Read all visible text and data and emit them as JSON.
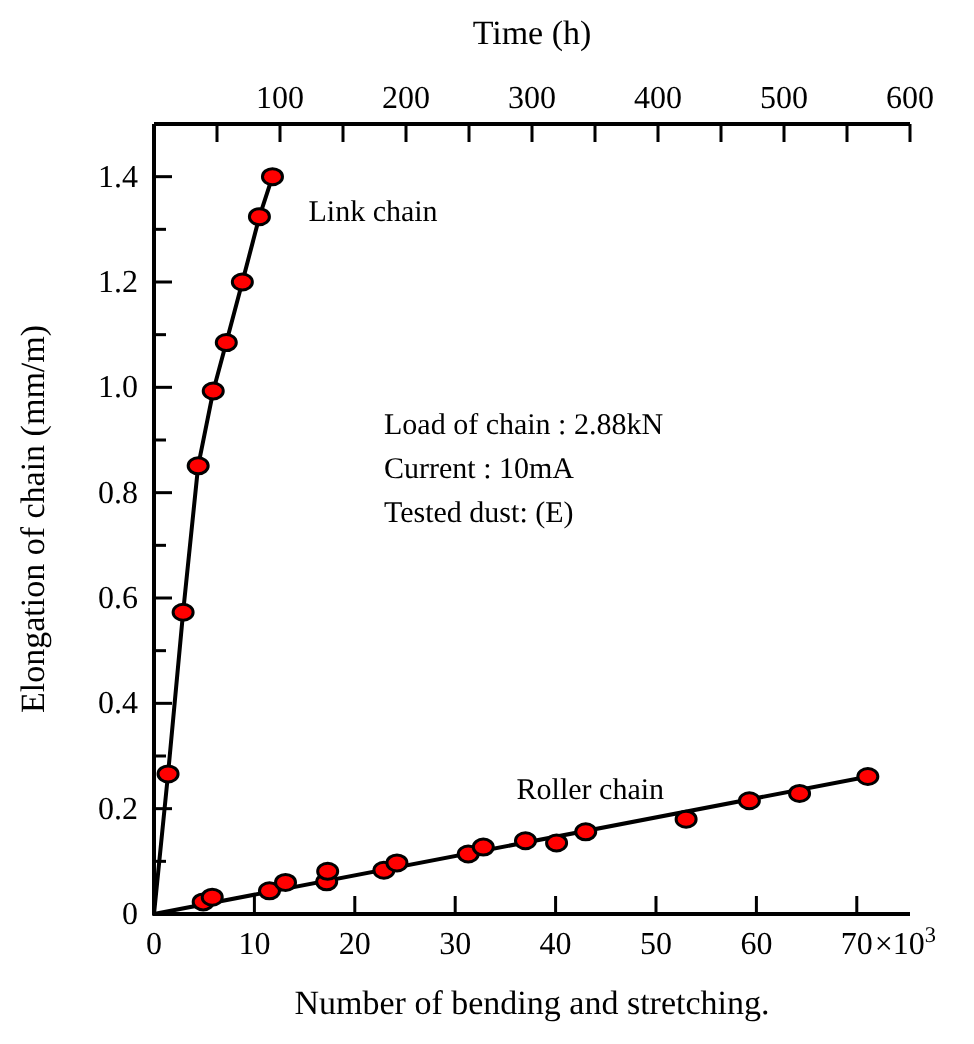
{
  "chart_data": {
    "type": "scatter",
    "xlabel": "Number of bending and stretching.",
    "ylabel": "Elongation of chain (mm/m)",
    "x2label": "Time (h)",
    "xlim": [
      0,
      75.3
    ],
    "ylim": [
      0,
      1.5
    ],
    "x2lim": [
      0,
      600
    ],
    "xticks": [
      0,
      10,
      20,
      30,
      40,
      50,
      60,
      70
    ],
    "x2ticks": [
      {
        "value": 50,
        "label": null
      },
      100,
      {
        "value": 150,
        "label": null
      },
      200,
      {
        "value": 250,
        "label": null
      },
      300,
      {
        "value": 350,
        "label": null
      },
      400,
      {
        "value": 450,
        "label": null
      },
      500,
      {
        "value": 550,
        "label": null
      },
      600
    ],
    "yticks": [
      0,
      {
        "value": 0.1,
        "label": null
      },
      0.2,
      {
        "value": 0.3,
        "label": null
      },
      0.4,
      {
        "value": 0.5,
        "label": null
      },
      0.6,
      {
        "value": 0.7,
        "label": null
      },
      0.8,
      {
        "value": 0.9,
        "label": null
      },
      {
        "value": 1.0,
        "label": "1.0"
      },
      {
        "value": 1.1,
        "label": null
      },
      1.2,
      {
        "value": 1.3,
        "label": null
      },
      1.4
    ],
    "grid": false,
    "marker": "circle",
    "series": [
      {
        "name": "Link chain",
        "color": "#ff0000",
        "x": [
          1.4,
          2.9,
          4.4,
          5.9,
          7.2,
          8.8,
          10.5,
          11.8
        ],
        "values": [
          0.266,
          0.573,
          0.851,
          0.993,
          1.085,
          1.2,
          1.324,
          1.4
        ]
      },
      {
        "name": "Roller chain",
        "color": "#ff0000",
        "x": [
          4.9,
          5.8,
          11.5,
          13.1,
          17.2,
          17.3,
          22.9,
          24.2,
          31.3,
          32.8,
          37.0,
          40.1,
          43.0,
          53.0,
          59.3,
          64.3,
          71.1
        ],
        "values": [
          0.023,
          0.032,
          0.044,
          0.06,
          0.061,
          0.081,
          0.083,
          0.097,
          0.114,
          0.127,
          0.139,
          0.135,
          0.156,
          0.18,
          0.215,
          0.229,
          0.261
        ]
      },
      {
        "type": "line",
        "color": "#000000",
        "marker": "none",
        "line_style": "solid",
        "x": [
          0,
          1.4,
          2.9,
          4.4,
          5.9,
          7.2,
          8.8,
          10.5,
          11.8
        ],
        "values": [
          0,
          0.266,
          0.573,
          0.851,
          0.993,
          1.085,
          1.2,
          1.324,
          1.4
        ]
      },
      {
        "type": "line",
        "color": "#000000",
        "marker": "none",
        "line_style": "solid",
        "x": [
          0,
          71.7
        ],
        "values": [
          0,
          0.263
        ]
      }
    ],
    "annotations": [
      "Load of chain : 2.88kN",
      "Current : 10mA",
      "Tested dust: (E)",
      "×10$^{3}$"
    ]
  }
}
